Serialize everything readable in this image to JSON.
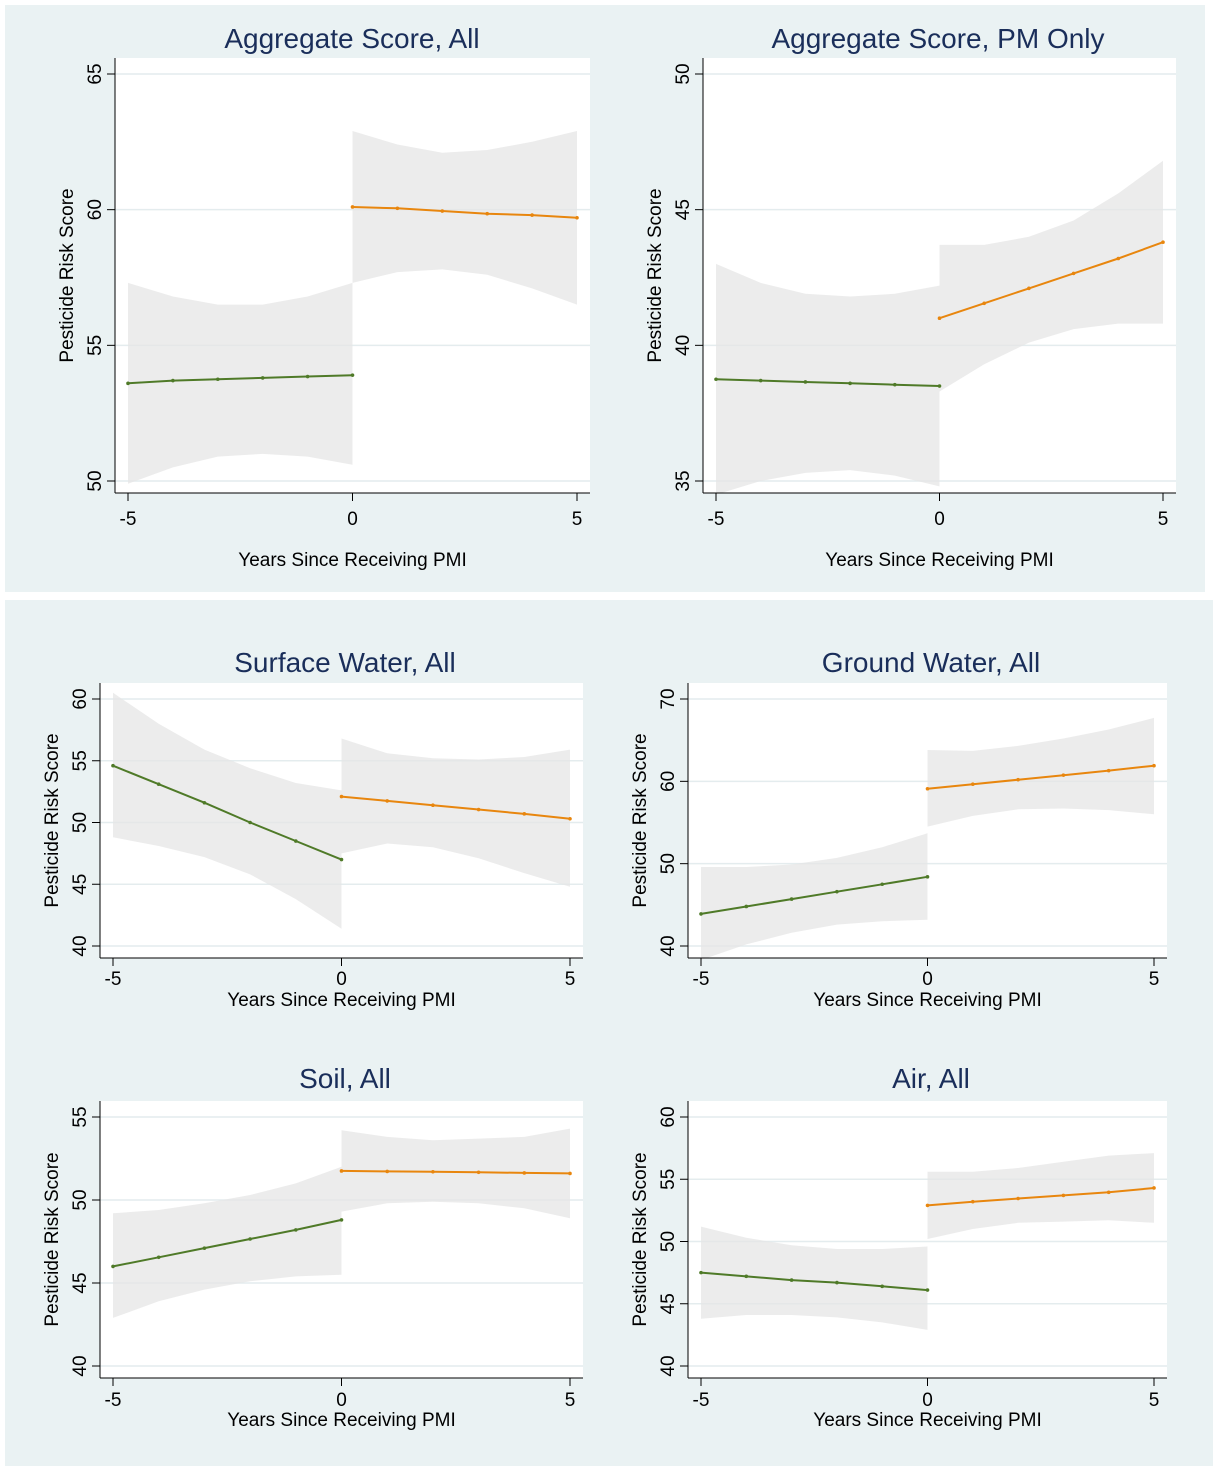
{
  "colors": {
    "pre": "#4f7a28",
    "post": "#e8860e",
    "band": "#e6e6e6",
    "grid": "#e4ecee",
    "panel_bg": "#eaf2f3",
    "title": "#1a2e5a"
  },
  "chart_data": [
    {
      "type": "line",
      "title": "Aggregate Score, All",
      "xlabel": "Years Since Receiving PMI",
      "ylabel": "Pesticide Risk Score",
      "xlim": [
        -5,
        5
      ],
      "ylim": [
        50,
        65
      ],
      "xticks": [
        -5,
        0,
        5
      ],
      "yticks": [
        50,
        55,
        60,
        65
      ],
      "grid": true,
      "series": [
        {
          "x": [
            -5,
            -4,
            -3,
            -2,
            -1,
            0
          ],
          "y": [
            53.6,
            53.7,
            53.75,
            53.8,
            53.85,
            53.9
          ],
          "lower": [
            49.9,
            50.5,
            50.9,
            51.0,
            50.9,
            50.6
          ],
          "upper": [
            57.3,
            56.8,
            56.5,
            56.5,
            56.8,
            57.3
          ]
        },
        {
          "x": [
            0,
            1,
            2,
            3,
            4,
            5
          ],
          "y": [
            60.1,
            60.05,
            59.95,
            59.85,
            59.8,
            59.7
          ],
          "lower": [
            57.3,
            57.7,
            57.8,
            57.6,
            57.1,
            56.5
          ],
          "upper": [
            62.9,
            62.4,
            62.1,
            62.2,
            62.5,
            62.9
          ]
        }
      ]
    },
    {
      "type": "line",
      "title": "Aggregate Score, PM Only",
      "xlabel": "Years Since Receiving PMI",
      "ylabel": "Pesticide Risk Score",
      "xlim": [
        -5,
        5
      ],
      "ylim": [
        35,
        50
      ],
      "xticks": [
        -5,
        0,
        5
      ],
      "yticks": [
        35,
        40,
        45,
        50
      ],
      "grid": true,
      "series": [
        {
          "x": [
            -5,
            -4,
            -3,
            -2,
            -1,
            0
          ],
          "y": [
            38.75,
            38.7,
            38.65,
            38.6,
            38.55,
            38.5
          ],
          "lower": [
            34.5,
            35.0,
            35.3,
            35.4,
            35.2,
            34.8
          ],
          "upper": [
            43.0,
            42.3,
            41.9,
            41.8,
            41.9,
            42.2
          ]
        },
        {
          "x": [
            0,
            1,
            2,
            3,
            4,
            5
          ],
          "y": [
            41.0,
            41.55,
            42.1,
            42.65,
            43.2,
            43.8
          ],
          "lower": [
            38.3,
            39.3,
            40.1,
            40.6,
            40.8,
            40.8
          ],
          "upper": [
            43.7,
            43.7,
            44.0,
            44.6,
            45.6,
            46.8
          ]
        }
      ]
    },
    {
      "type": "line",
      "title": "Surface Water, All",
      "xlabel": "Years Since Receiving PMI",
      "ylabel": "Pesticide Risk Score",
      "xlim": [
        -5,
        5
      ],
      "ylim": [
        40,
        60
      ],
      "xticks": [
        -5,
        0,
        5
      ],
      "yticks": [
        40,
        45,
        50,
        55,
        60
      ],
      "grid": true,
      "series": [
        {
          "x": [
            -5,
            -4,
            -3,
            -2,
            -1,
            0
          ],
          "y": [
            54.6,
            53.1,
            51.6,
            50.0,
            48.5,
            47.0
          ],
          "lower": [
            48.8,
            48.1,
            47.2,
            45.8,
            43.8,
            41.4
          ],
          "upper": [
            60.5,
            58.0,
            55.9,
            54.4,
            53.2,
            52.6
          ]
        },
        {
          "x": [
            0,
            1,
            2,
            3,
            4,
            5
          ],
          "y": [
            52.1,
            51.75,
            51.4,
            51.05,
            50.7,
            50.3
          ],
          "lower": [
            47.5,
            48.3,
            48.0,
            47.1,
            45.9,
            44.8
          ],
          "upper": [
            56.8,
            55.6,
            55.2,
            55.1,
            55.3,
            55.9
          ]
        }
      ]
    },
    {
      "type": "line",
      "title": "Ground Water, All",
      "xlabel": "Years Since Receiving PMI",
      "ylabel": "Pesticide Risk Score",
      "xlim": [
        -5,
        5
      ],
      "ylim": [
        40,
        70
      ],
      "xticks": [
        -5,
        0,
        5
      ],
      "yticks": [
        40,
        50,
        60,
        70
      ],
      "grid": true,
      "series": [
        {
          "x": [
            -5,
            -4,
            -3,
            -2,
            -1,
            0
          ],
          "y": [
            43.9,
            44.8,
            45.7,
            46.6,
            47.5,
            48.4
          ],
          "lower": [
            38.3,
            40.2,
            41.6,
            42.6,
            43.0,
            43.2
          ],
          "upper": [
            49.6,
            49.6,
            49.9,
            50.7,
            52.0,
            53.7
          ]
        },
        {
          "x": [
            0,
            1,
            2,
            3,
            4,
            5
          ],
          "y": [
            59.1,
            59.65,
            60.2,
            60.75,
            61.3,
            61.9
          ],
          "lower": [
            54.5,
            55.8,
            56.6,
            56.7,
            56.5,
            56.0
          ],
          "upper": [
            63.8,
            63.7,
            64.3,
            65.2,
            66.3,
            67.7
          ]
        }
      ]
    },
    {
      "type": "line",
      "title": "Soil, All",
      "xlabel": "Years Since Receiving PMI",
      "ylabel": "Pesticide Risk Score",
      "xlim": [
        -5,
        5
      ],
      "ylim": [
        40,
        55
      ],
      "xticks": [
        -5,
        0,
        5
      ],
      "yticks": [
        40,
        45,
        50,
        55
      ],
      "grid": true,
      "series": [
        {
          "x": [
            -5,
            -4,
            -3,
            -2,
            -1,
            0
          ],
          "y": [
            46.0,
            46.55,
            47.1,
            47.65,
            48.2,
            48.8
          ],
          "lower": [
            42.9,
            43.9,
            44.6,
            45.1,
            45.4,
            45.5
          ],
          "upper": [
            49.2,
            49.4,
            49.8,
            50.3,
            51.0,
            52.0
          ]
        },
        {
          "x": [
            0,
            1,
            2,
            3,
            4,
            5
          ],
          "y": [
            51.75,
            51.72,
            51.7,
            51.67,
            51.63,
            51.6
          ],
          "lower": [
            49.3,
            49.8,
            49.9,
            49.8,
            49.5,
            48.9
          ],
          "upper": [
            54.2,
            53.8,
            53.6,
            53.7,
            53.8,
            54.3
          ]
        }
      ]
    },
    {
      "type": "line",
      "title": "Air, All",
      "xlabel": "Years Since Receiving PMI",
      "ylabel": "Pesticide Risk Score",
      "xlim": [
        -5,
        5
      ],
      "ylim": [
        40,
        60
      ],
      "xticks": [
        -5,
        0,
        5
      ],
      "yticks": [
        40,
        45,
        50,
        55,
        60
      ],
      "grid": true,
      "series": [
        {
          "x": [
            -5,
            -4,
            -3,
            -2,
            -1,
            0
          ],
          "y": [
            47.5,
            47.2,
            46.9,
            46.7,
            46.4,
            46.1
          ],
          "lower": [
            43.8,
            44.1,
            44.1,
            43.9,
            43.5,
            42.9
          ],
          "upper": [
            51.2,
            50.3,
            49.7,
            49.4,
            49.4,
            49.6
          ]
        },
        {
          "x": [
            0,
            1,
            2,
            3,
            4,
            5
          ],
          "y": [
            52.9,
            53.2,
            53.45,
            53.7,
            53.95,
            54.3
          ],
          "lower": [
            50.2,
            51.0,
            51.5,
            51.6,
            51.7,
            51.5
          ],
          "upper": [
            55.6,
            55.6,
            55.9,
            56.4,
            56.9,
            57.1
          ]
        }
      ]
    }
  ]
}
